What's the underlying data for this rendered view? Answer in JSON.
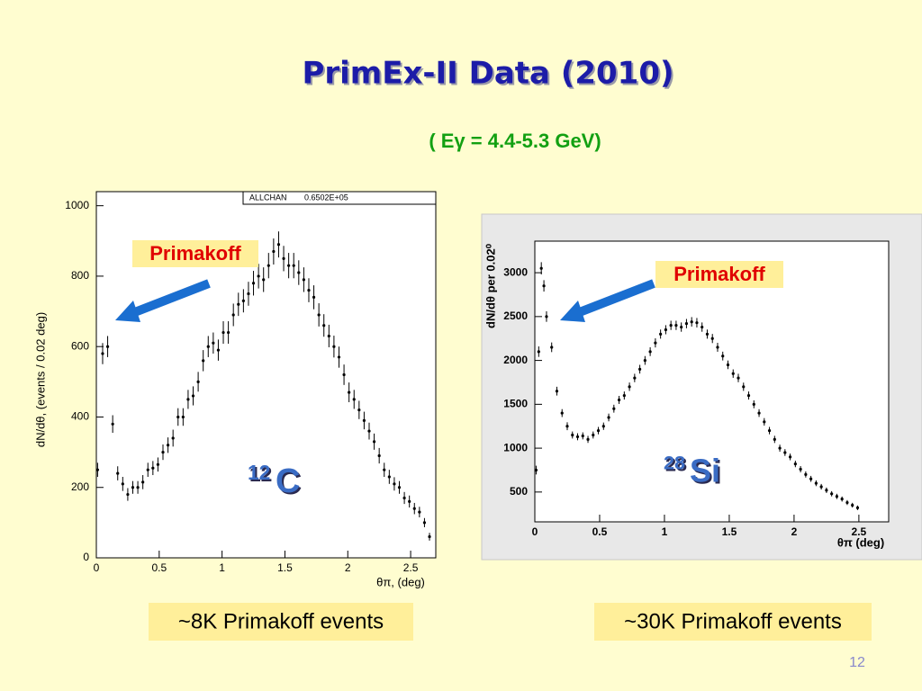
{
  "slide": {
    "title": "PrimEx-II Data (2010)",
    "subtitle": "( Eγ = 4.4-5.3 GeV)",
    "page_number": "12"
  },
  "chart_data": [
    {
      "type": "scatter",
      "xlabel": "θπ,   (deg)",
      "ylabel": "dN/dθ,   (events / 0.02 deg)",
      "stats": {
        "label": "ALLCHAN",
        "value": "0.6502E+05"
      },
      "annotation": "Primakoff",
      "isotope": {
        "mass": "12",
        "symbol": "C"
      },
      "caption": "~8K Primakoff events",
      "xlim": [
        0,
        2.7
      ],
      "ylim": [
        0,
        1040
      ],
      "xticks": [
        0,
        0.5,
        1,
        1.5,
        2,
        2.5
      ],
      "yticks": [
        0,
        200,
        400,
        600,
        800,
        1000
      ],
      "color": "#000000",
      "x": [
        0.01,
        0.05,
        0.09,
        0.13,
        0.17,
        0.21,
        0.25,
        0.29,
        0.33,
        0.37,
        0.41,
        0.45,
        0.49,
        0.53,
        0.57,
        0.61,
        0.65,
        0.69,
        0.73,
        0.77,
        0.81,
        0.85,
        0.89,
        0.93,
        0.97,
        1.01,
        1.05,
        1.09,
        1.13,
        1.17,
        1.21,
        1.25,
        1.29,
        1.33,
        1.37,
        1.41,
        1.45,
        1.49,
        1.53,
        1.57,
        1.61,
        1.65,
        1.69,
        1.73,
        1.77,
        1.81,
        1.85,
        1.89,
        1.93,
        1.97,
        2.01,
        2.05,
        2.09,
        2.13,
        2.17,
        2.21,
        2.25,
        2.29,
        2.33,
        2.37,
        2.41,
        2.45,
        2.49,
        2.53,
        2.57,
        2.61,
        2.65
      ],
      "values": [
        250,
        580,
        600,
        380,
        240,
        210,
        180,
        200,
        200,
        215,
        250,
        255,
        265,
        300,
        320,
        340,
        400,
        400,
        450,
        460,
        500,
        560,
        600,
        610,
        590,
        640,
        640,
        690,
        720,
        730,
        750,
        780,
        800,
        790,
        830,
        870,
        890,
        850,
        830,
        830,
        810,
        790,
        760,
        740,
        690,
        660,
        630,
        600,
        570,
        520,
        470,
        450,
        420,
        390,
        360,
        330,
        290,
        250,
        230,
        210,
        200,
        170,
        160,
        140,
        130,
        100,
        60
      ],
      "errors": [
        20,
        30,
        30,
        25,
        20,
        20,
        18,
        18,
        18,
        20,
        20,
        20,
        20,
        22,
        22,
        24,
        25,
        25,
        27,
        27,
        28,
        30,
        30,
        30,
        30,
        32,
        32,
        32,
        33,
        33,
        34,
        35,
        35,
        35,
        36,
        37,
        37,
        36,
        36,
        36,
        35,
        35,
        34,
        34,
        33,
        32,
        32,
        31,
        30,
        29,
        28,
        27,
        26,
        25,
        24,
        23,
        22,
        20,
        20,
        19,
        18,
        17,
        17,
        16,
        15,
        13,
        11
      ]
    },
    {
      "type": "scatter",
      "xlabel": "θπ  (deg)",
      "ylabel": "dN/dθ per 0.02⁰",
      "annotation": "Primakoff",
      "isotope": {
        "mass": "28",
        "symbol": "Si"
      },
      "caption": "~30K Primakoff events",
      "xlim": [
        0,
        2.73
      ],
      "ylim": [
        160,
        3360
      ],
      "xticks": [
        0,
        0.5,
        1,
        1.5,
        2,
        2.5
      ],
      "yticks": [
        500,
        1000,
        1500,
        2000,
        2500,
        3000
      ],
      "color": "#000000",
      "x": [
        0.01,
        0.03,
        0.05,
        0.07,
        0.09,
        0.13,
        0.17,
        0.21,
        0.25,
        0.29,
        0.33,
        0.37,
        0.41,
        0.45,
        0.49,
        0.53,
        0.57,
        0.61,
        0.65,
        0.69,
        0.73,
        0.77,
        0.81,
        0.85,
        0.89,
        0.93,
        0.97,
        1.01,
        1.05,
        1.09,
        1.13,
        1.17,
        1.21,
        1.25,
        1.29,
        1.33,
        1.37,
        1.41,
        1.45,
        1.49,
        1.53,
        1.57,
        1.61,
        1.65,
        1.69,
        1.73,
        1.77,
        1.81,
        1.85,
        1.89,
        1.93,
        1.97,
        2.01,
        2.05,
        2.09,
        2.13,
        2.17,
        2.21,
        2.25,
        2.29,
        2.33,
        2.37,
        2.41,
        2.45,
        2.49
      ],
      "values": [
        750,
        2100,
        3050,
        2850,
        2500,
        2150,
        1650,
        1400,
        1250,
        1150,
        1130,
        1140,
        1100,
        1150,
        1200,
        1250,
        1350,
        1450,
        1550,
        1600,
        1700,
        1800,
        1900,
        2000,
        2100,
        2200,
        2300,
        2350,
        2400,
        2400,
        2380,
        2420,
        2440,
        2430,
        2380,
        2300,
        2250,
        2150,
        2050,
        1950,
        1850,
        1800,
        1700,
        1600,
        1500,
        1400,
        1300,
        1200,
        1100,
        1000,
        950,
        900,
        820,
        760,
        700,
        650,
        600,
        560,
        520,
        480,
        450,
        420,
        380,
        350,
        320
      ],
      "errors": [
        50,
        60,
        70,
        65,
        60,
        55,
        50,
        45,
        45,
        40,
        40,
        40,
        40,
        40,
        42,
        42,
        44,
        45,
        46,
        46,
        48,
        48,
        50,
        50,
        50,
        52,
        52,
        52,
        53,
        53,
        53,
        53,
        54,
        54,
        53,
        52,
        52,
        51,
        50,
        49,
        48,
        48,
        47,
        46,
        45,
        44,
        43,
        42,
        41,
        40,
        39,
        38,
        37,
        36,
        35,
        34,
        33,
        32,
        31,
        30,
        30,
        29,
        28,
        27,
        26
      ]
    }
  ]
}
